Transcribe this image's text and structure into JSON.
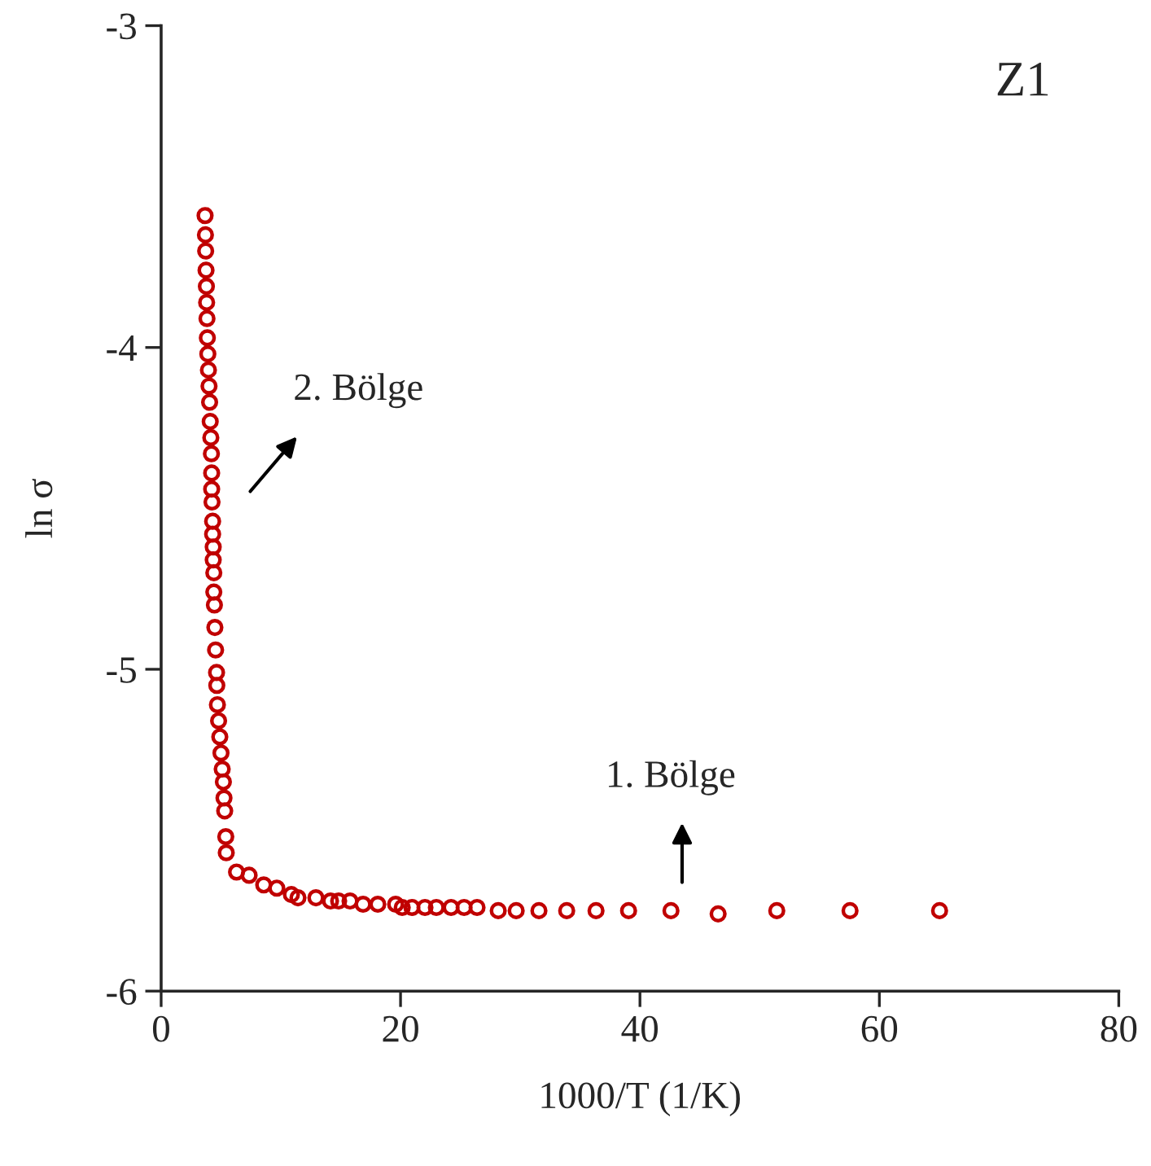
{
  "chart_data": {
    "type": "scatter",
    "xlabel": "1000/T (1/K)",
    "ylabel": "ln σ",
    "xlim": [
      0,
      80
    ],
    "xticks": [
      0,
      20,
      40,
      60,
      80
    ],
    "ylim": [
      -6,
      -3
    ],
    "yticks": [
      -6,
      -5,
      -4,
      -3
    ],
    "grid": false,
    "legend": false,
    "marker": "circle",
    "annotations": [
      "Z1",
      "2. Bölge",
      "1. Bölge"
    ],
    "series": [
      {
        "color": "#c00000",
        "x": [
          3.67,
          3.7,
          3.72,
          3.75,
          3.78,
          3.8,
          3.83,
          3.86,
          3.9,
          3.95,
          4.0,
          4.05,
          4.1,
          4.15,
          4.2,
          4.22,
          4.22,
          4.25,
          4.3,
          4.3,
          4.35,
          4.35,
          4.4,
          4.4,
          4.45,
          4.49,
          4.55,
          4.63,
          4.65,
          4.7,
          4.8,
          4.9,
          5.0,
          5.1,
          5.2,
          5.25,
          5.31,
          5.4,
          5.44,
          6.3,
          7.35,
          8.57,
          9.66,
          10.88,
          11.43,
          12.93,
          14.15,
          14.83,
          15.78,
          16.87,
          18.1,
          19.59,
          20.14,
          20.95,
          22.04,
          22.99,
          24.22,
          25.31,
          26.39,
          28.16,
          29.66,
          31.56,
          33.88,
          36.33,
          39.05,
          42.59,
          46.53,
          51.43,
          57.55,
          65.03
        ],
        "values": [
          -3.59,
          -3.65,
          -3.7,
          -3.76,
          -3.81,
          -3.86,
          -3.91,
          -3.97,
          -4.02,
          -4.07,
          -4.12,
          -4.17,
          -4.23,
          -4.28,
          -4.33,
          -4.39,
          -4.44,
          -4.48,
          -4.54,
          -4.58,
          -4.62,
          -4.66,
          -4.7,
          -4.76,
          -4.8,
          -4.87,
          -4.94,
          -5.01,
          -5.05,
          -5.11,
          -5.16,
          -5.21,
          -5.26,
          -5.31,
          -5.35,
          -5.4,
          -5.44,
          -5.52,
          -5.57,
          -5.63,
          -5.64,
          -5.67,
          -5.68,
          -5.7,
          -5.71,
          -5.71,
          -5.72,
          -5.72,
          -5.72,
          -5.73,
          -5.73,
          -5.73,
          -5.74,
          -5.74,
          -5.74,
          -5.74,
          -5.74,
          -5.74,
          -5.74,
          -5.75,
          -5.75,
          -5.75,
          -5.75,
          -5.75,
          -5.75,
          -5.75,
          -5.76,
          -5.75,
          -5.75,
          -5.75
        ]
      }
    ]
  }
}
